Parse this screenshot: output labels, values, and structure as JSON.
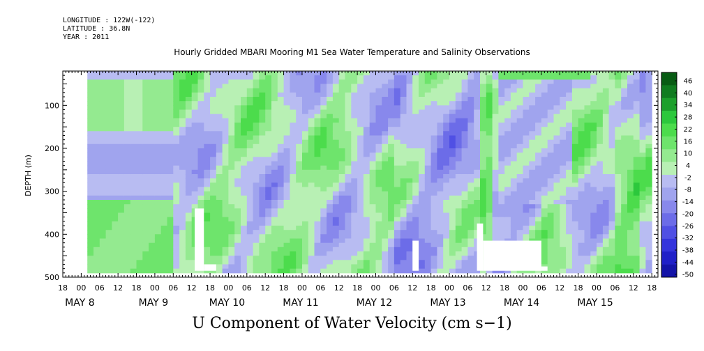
{
  "header": {
    "longitude": "LONGITUDE : 122W(-122)",
    "latitude": "LATITUDE : 36.8N",
    "year": "YEAR : 2011"
  },
  "chart_data": {
    "type": "heatmap",
    "title": "Hourly Gridded MBARI Mooring M1 Sea Water Temperature and Salinity Observations",
    "subtitle": "U Component of Water Velocity (cm s−1)",
    "ylabel": "DEPTH (m)",
    "xlabel": "",
    "x_range_hours_since_may8_00": [
      -6,
      188
    ],
    "ylim": [
      500,
      20
    ],
    "y_ticks": [
      100,
      200,
      300,
      400,
      500
    ],
    "y_tick_labels": [
      "100",
      "200",
      "300",
      "400",
      "500"
    ],
    "hour_tick_labels": [
      "18",
      "00",
      "06",
      "12",
      "18",
      "00",
      "06",
      "12",
      "18",
      "00",
      "06",
      "12",
      "18",
      "00",
      "06",
      "12",
      "18",
      "00",
      "06",
      "12",
      "18",
      "00",
      "06",
      "12",
      "18",
      "00",
      "06",
      "12",
      "18",
      "00",
      "06",
      "12",
      "18"
    ],
    "date_labels": [
      "MAY  8",
      "MAY  9",
      "MAY 10",
      "MAY 11",
      "MAY 12",
      "MAY 13",
      "MAY 14",
      "MAY 15"
    ],
    "colorbar": {
      "levels": [
        -50,
        -44,
        -38,
        -32,
        -26,
        -20,
        -14,
        -8,
        -2,
        4,
        10,
        16,
        22,
        28,
        34,
        40,
        46
      ],
      "labels": [
        "46",
        "40",
        "34",
        "28",
        "22",
        "16",
        "10",
        "4",
        "-2",
        "-8",
        "-14",
        "-20",
        "-26",
        "-32",
        "-38",
        "-44",
        "-50"
      ],
      "neg_colors": [
        "#0a0a80",
        "#1414a8",
        "#2020c8",
        "#3434dc",
        "#5050e4",
        "#6c6ce8",
        "#8888ec",
        "#a0a4ee",
        "#b8bcf2"
      ],
      "pos_colors": [
        "#b8f0b4",
        "#94ea90",
        "#6ee46c",
        "#4cdc4c",
        "#2cc83c",
        "#1ca02c",
        "#107c20",
        "#085c14",
        "#044010"
      ]
    },
    "data_columns_approx": [
      {
        "start_hour": 2,
        "end_hour": 30,
        "pattern": "surface negative, mid positive, deep positive"
      },
      {
        "start_hour": 30,
        "end_hour": 100,
        "pattern": "alternating positive and negative"
      },
      {
        "start_hour": 100,
        "end_hour": 150,
        "pattern": "mostly negative with positive bands"
      },
      {
        "start_hour": 150,
        "end_hour": 188,
        "pattern": "mixed"
      }
    ]
  }
}
